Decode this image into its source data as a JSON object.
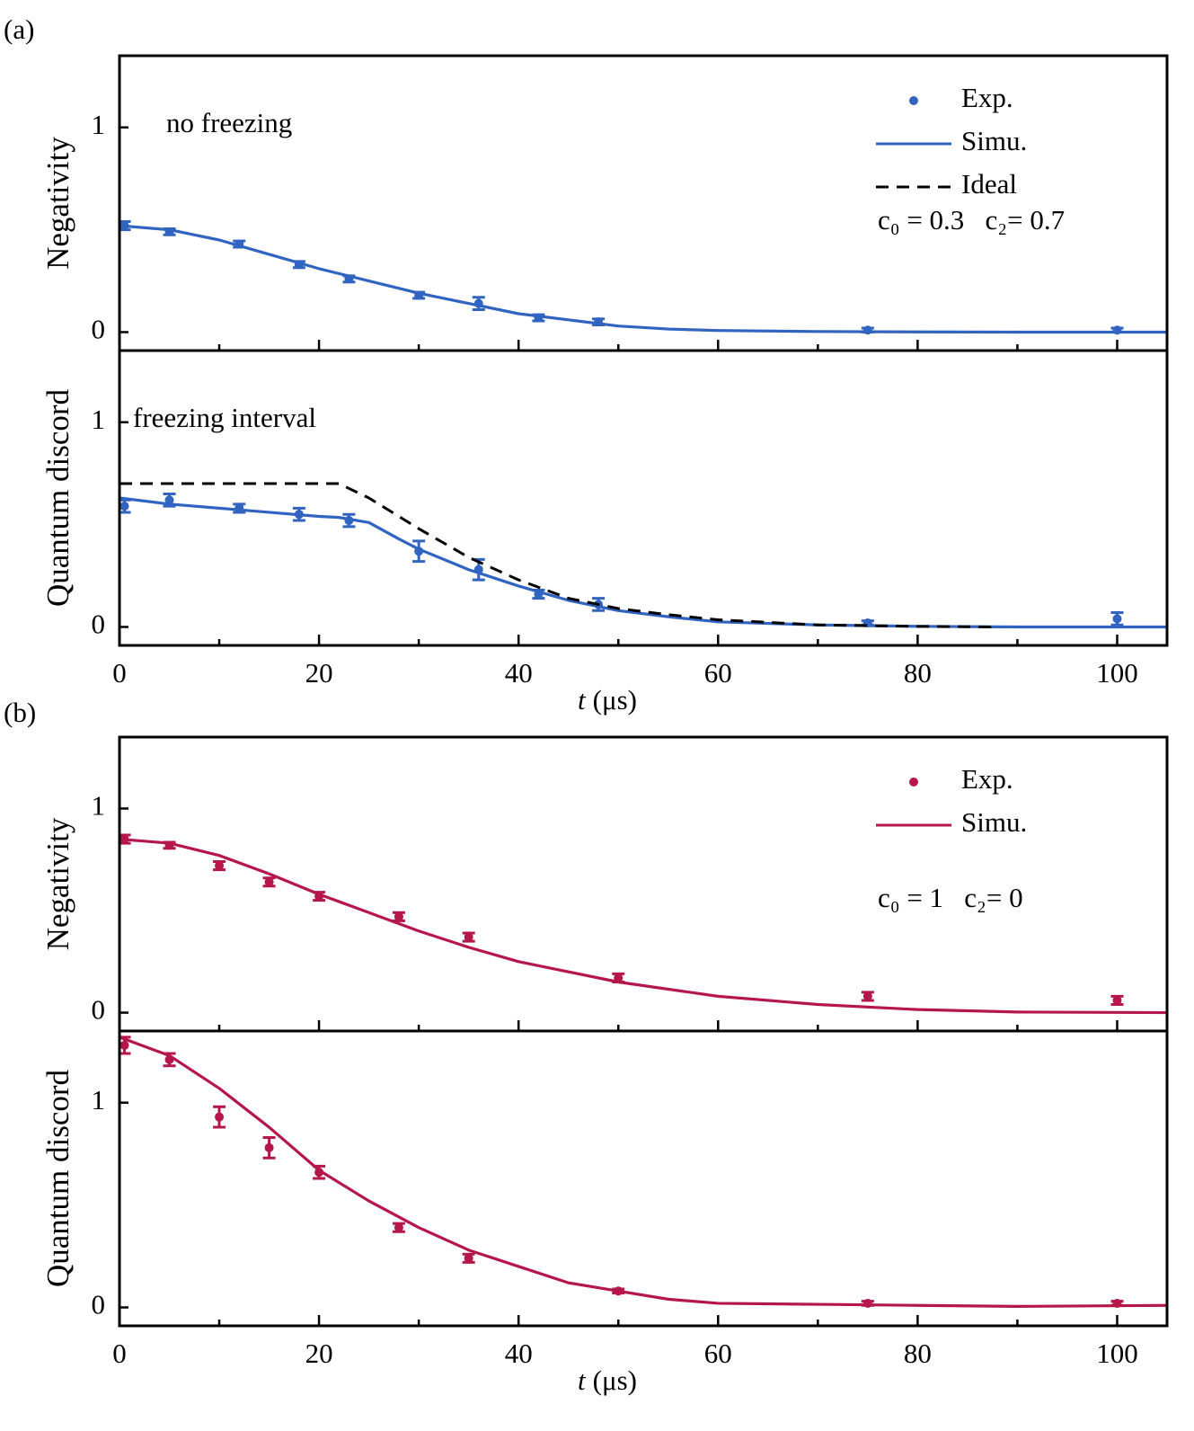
{
  "chart_data": [
    {
      "type": "line",
      "panel_label": "(a)",
      "ylabel": "Negativity",
      "legend": "upper right",
      "annotations": [
        "no freezing",
        "c₀ = 0.3   c₂= 0.7"
      ],
      "xlim": [
        0,
        105
      ],
      "xticks": [
        0,
        20,
        40,
        60,
        80,
        100
      ],
      "xminorticks": [
        10,
        30,
        50,
        70,
        90
      ],
      "show_xtick_labels": false,
      "ylim": [
        -0.09,
        1.35
      ],
      "yticks": [
        0,
        1
      ],
      "series": [
        {
          "name": "Exp.",
          "style": "points",
          "color": "#3064c0",
          "x": [
            0.5,
            5,
            12,
            18,
            23,
            30,
            36,
            42,
            48,
            75,
            100
          ],
          "values": [
            0.52,
            0.49,
            0.43,
            0.33,
            0.26,
            0.18,
            0.14,
            0.07,
            0.05,
            0.01,
            0.01
          ],
          "errors": [
            0.02,
            0.015,
            0.015,
            0.015,
            0.015,
            0.015,
            0.03,
            0.015,
            0.015,
            0.01,
            0.01
          ]
        },
        {
          "name": "Simu.",
          "style": "line",
          "color": "#3064c0",
          "x": [
            0,
            5,
            10,
            15,
            20,
            25,
            30,
            35,
            40,
            45,
            50,
            55,
            60,
            70,
            80,
            90,
            105
          ],
          "values": [
            0.52,
            0.5,
            0.45,
            0.38,
            0.31,
            0.25,
            0.19,
            0.14,
            0.09,
            0.06,
            0.03,
            0.015,
            0.008,
            0.003,
            0.001,
            0,
            0
          ]
        }
      ]
    },
    {
      "type": "line",
      "ylabel": "Quantum discord",
      "xlabel_symbol": "t",
      "xlabel_unit": "(μs)",
      "annotations": [
        "freezing interval"
      ],
      "xlim": [
        0,
        105
      ],
      "xticks": [
        0,
        20,
        40,
        60,
        80,
        100
      ],
      "xminorticks": [
        10,
        30,
        50,
        70,
        90
      ],
      "show_xtick_labels": true,
      "ylim": [
        -0.09,
        1.35
      ],
      "yticks": [
        0,
        1
      ],
      "series": [
        {
          "name": "Exp.",
          "style": "points",
          "color": "#3064c0",
          "x": [
            0.5,
            5,
            12,
            18,
            23,
            30,
            36,
            42,
            48,
            75,
            100
          ],
          "values": [
            0.59,
            0.62,
            0.58,
            0.55,
            0.52,
            0.37,
            0.28,
            0.16,
            0.11,
            0.02,
            0.04
          ],
          "errors": [
            0.03,
            0.03,
            0.02,
            0.03,
            0.03,
            0.05,
            0.05,
            0.02,
            0.03,
            0.01,
            0.03
          ]
        },
        {
          "name": "Simu.",
          "style": "line",
          "color": "#3064c0",
          "x": [
            0,
            5,
            10,
            15,
            20,
            22,
            25,
            28,
            30,
            35,
            40,
            45,
            50,
            55,
            60,
            70,
            80,
            90,
            105
          ],
          "values": [
            0.63,
            0.6,
            0.58,
            0.56,
            0.54,
            0.535,
            0.51,
            0.43,
            0.38,
            0.28,
            0.2,
            0.13,
            0.08,
            0.05,
            0.025,
            0.01,
            0.003,
            0,
            0
          ]
        },
        {
          "name": "Ideal",
          "style": "dashed",
          "color": "#000000",
          "x": [
            0,
            22,
            25,
            30,
            35,
            40,
            45,
            50,
            55,
            60,
            70,
            80,
            88
          ],
          "values": [
            0.7,
            0.7,
            0.63,
            0.48,
            0.34,
            0.23,
            0.14,
            0.09,
            0.06,
            0.035,
            0.01,
            0.003,
            0
          ]
        }
      ]
    },
    {
      "type": "line",
      "panel_label": "(b)",
      "ylabel": "Negativity",
      "legend": "upper right",
      "annotations": [
        "c₀ = 1   c₂= 0"
      ],
      "xlim": [
        0,
        105
      ],
      "xticks": [
        0,
        20,
        40,
        60,
        80,
        100
      ],
      "xminorticks": [
        10,
        30,
        50,
        70,
        90
      ],
      "show_xtick_labels": false,
      "ylim": [
        -0.09,
        1.35
      ],
      "yticks": [
        0,
        1
      ],
      "series": [
        {
          "name": "Exp.",
          "style": "points",
          "color": "#b5174b",
          "x": [
            0.5,
            5,
            10,
            15,
            20,
            28,
            35,
            50,
            75,
            100
          ],
          "values": [
            0.85,
            0.82,
            0.72,
            0.64,
            0.57,
            0.47,
            0.37,
            0.17,
            0.08,
            0.06
          ],
          "errors": [
            0.02,
            0.015,
            0.02,
            0.02,
            0.02,
            0.02,
            0.02,
            0.02,
            0.02,
            0.02
          ]
        },
        {
          "name": "Simu.",
          "style": "line",
          "color": "#b5174b",
          "x": [
            0,
            5,
            10,
            15,
            20,
            25,
            30,
            35,
            40,
            45,
            50,
            60,
            70,
            80,
            90,
            105
          ],
          "values": [
            0.85,
            0.83,
            0.77,
            0.68,
            0.58,
            0.49,
            0.4,
            0.32,
            0.25,
            0.2,
            0.15,
            0.08,
            0.04,
            0.015,
            0.003,
            0
          ]
        }
      ]
    },
    {
      "type": "line",
      "ylabel": "Quantum discord",
      "xlabel_symbol": "t",
      "xlabel_unit": "(μs)",
      "xlim": [
        0,
        105
      ],
      "xticks": [
        0,
        20,
        40,
        60,
        80,
        100
      ],
      "xminorticks": [
        10,
        30,
        50,
        70,
        90
      ],
      "show_xtick_labels": true,
      "ylim": [
        -0.09,
        1.35
      ],
      "yticks": [
        0,
        1
      ],
      "series": [
        {
          "name": "Exp.",
          "style": "points",
          "color": "#b5174b",
          "x": [
            0.5,
            5,
            10,
            15,
            20,
            28,
            35,
            50,
            75,
            100
          ],
          "values": [
            1.28,
            1.21,
            0.93,
            0.78,
            0.66,
            0.39,
            0.24,
            0.08,
            0.02,
            0.02
          ],
          "errors": [
            0.04,
            0.03,
            0.05,
            0.05,
            0.03,
            0.02,
            0.02,
            0.01,
            0.01,
            0.01
          ]
        },
        {
          "name": "Simu.",
          "style": "line",
          "color": "#b5174b",
          "x": [
            0,
            5,
            10,
            15,
            20,
            25,
            30,
            35,
            40,
            45,
            50,
            55,
            60,
            70,
            80,
            90,
            105
          ],
          "values": [
            1.32,
            1.23,
            1.07,
            0.88,
            0.67,
            0.52,
            0.39,
            0.28,
            0.2,
            0.12,
            0.08,
            0.04,
            0.02,
            0.015,
            0.01,
            0.005,
            0.01
          ]
        }
      ]
    }
  ]
}
